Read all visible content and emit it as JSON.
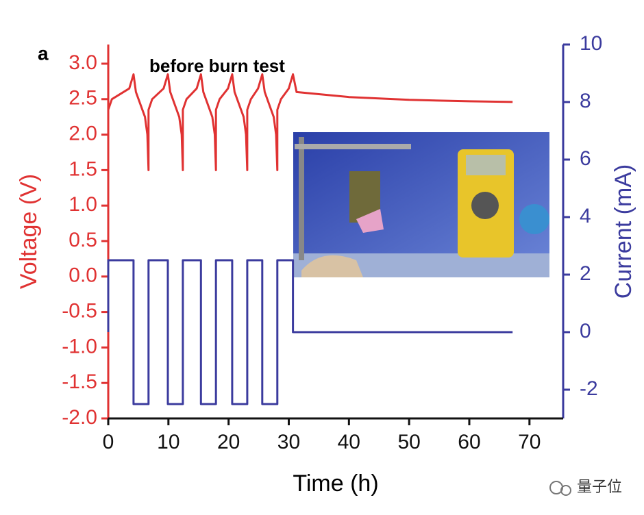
{
  "chart_data": {
    "type": "line",
    "panel_label": "a",
    "annotation": "before burn test",
    "x_label": "Time (h)",
    "y_label": "Voltage (V)",
    "y2_label": "Current (mA)",
    "watermark": "量子位",
    "xlim": [
      0,
      75.6
    ],
    "xticks": [
      0,
      10,
      20,
      30,
      40,
      50,
      60,
      70
    ],
    "ylim": [
      -2,
      3.27
    ],
    "yticks": [
      {
        "value": 3,
        "label": "3.0"
      },
      2.5,
      {
        "value": 2,
        "label": "2.0"
      },
      1.5,
      {
        "value": 1,
        "label": "1.0"
      },
      0.5,
      {
        "value": 0,
        "label": "0.0"
      },
      -0.5,
      {
        "value": -1,
        "label": "-1.0"
      },
      -1.5,
      {
        "value": -2,
        "label": "-2.0"
      }
    ],
    "y2lim": [
      -3,
      10
    ],
    "y2ticks": [
      10,
      8,
      6,
      4,
      2,
      0,
      -2
    ],
    "y_color": "#e03232",
    "y2_color": "#3b3b9e",
    "series": [
      {
        "color": "#e03232",
        "x": [
          0,
          0.6,
          3.5,
          4.2,
          4.6,
          6.1,
          6.5,
          6.7,
          6.7,
          7.3,
          9.2,
          9.9,
          10.3,
          11.8,
          12.2,
          12.4,
          12.4,
          13.0,
          14.7,
          15.4,
          15.8,
          17.3,
          17.7,
          17.9,
          17.9,
          18.5,
          19.9,
          20.6,
          21.0,
          22.5,
          22.9,
          23.1,
          23.1,
          23.7,
          24.9,
          25.6,
          26.0,
          27.5,
          27.9,
          28.1,
          28.1,
          28.7,
          30.0,
          30.7,
          31.3,
          35,
          40,
          50,
          60,
          67.2
        ],
        "values": [
          2.35,
          2.5,
          2.65,
          2.85,
          2.6,
          2.25,
          2.0,
          1.5,
          2.35,
          2.5,
          2.65,
          2.85,
          2.6,
          2.25,
          2.0,
          1.5,
          2.35,
          2.5,
          2.65,
          2.85,
          2.6,
          2.25,
          2.0,
          1.5,
          2.35,
          2.5,
          2.65,
          2.85,
          2.6,
          2.25,
          2.0,
          1.5,
          2.35,
          2.5,
          2.65,
          2.85,
          2.6,
          2.25,
          2.0,
          1.5,
          2.35,
          2.5,
          2.65,
          2.85,
          2.6,
          2.57,
          2.53,
          2.49,
          2.47,
          2.46
        ]
      },
      {
        "color": "#3b3b9e",
        "axis": "y2",
        "x": [
          0,
          0,
          4.2,
          4.2,
          6.7,
          6.7,
          9.9,
          9.9,
          12.4,
          12.4,
          15.4,
          15.4,
          17.9,
          17.9,
          20.6,
          20.6,
          23.1,
          23.1,
          25.6,
          25.6,
          28.1,
          28.1,
          30.7,
          30.7,
          67.2
        ],
        "values": [
          0,
          2.5,
          2.5,
          -2.5,
          -2.5,
          2.5,
          2.5,
          -2.5,
          -2.5,
          2.5,
          2.5,
          -2.5,
          -2.5,
          2.5,
          2.5,
          -2.5,
          -2.5,
          2.5,
          2.5,
          -2.5,
          -2.5,
          2.5,
          2.5,
          0,
          0
        ]
      }
    ]
  }
}
